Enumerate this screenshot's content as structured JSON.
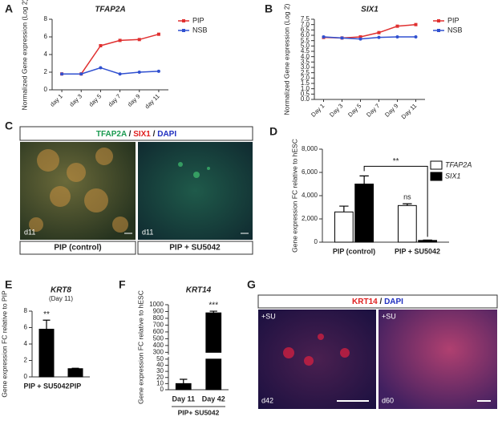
{
  "chart_data": [
    {
      "type": "line",
      "title": "TFAP2A",
      "ylabel": "Normalized Gene expression (Log 2)",
      "categories": [
        "day 1",
        "day 3",
        "day 5",
        "day 7",
        "day 9",
        "day 11"
      ],
      "series": [
        {
          "name": "PIP",
          "color": "#e03030",
          "values": [
            1.8,
            1.8,
            5.0,
            5.6,
            5.7,
            6.3
          ]
        },
        {
          "name": "NSB",
          "color": "#3050d0",
          "values": [
            1.8,
            1.8,
            2.5,
            1.8,
            2.0,
            2.1
          ]
        }
      ],
      "ylim": [
        0,
        8
      ],
      "yticks": [
        0,
        2,
        4,
        6,
        8
      ]
    },
    {
      "type": "line",
      "title": "SIX1",
      "ylabel": "Normalized Gene expression (Log 2)",
      "categories": [
        "Day 1",
        "Day 3",
        "Day 5",
        "Day 7",
        "Day 9",
        "Day 11"
      ],
      "series": [
        {
          "name": "PIP",
          "color": "#e03030",
          "values": [
            5.8,
            5.75,
            5.85,
            6.25,
            6.85,
            7.0
          ]
        },
        {
          "name": "NSB",
          "color": "#3050d0",
          "values": [
            5.85,
            5.75,
            5.65,
            5.8,
            5.85,
            5.85
          ]
        }
      ],
      "ylim": [
        0,
        7.5
      ],
      "yticks": [
        {
          "value": 0,
          "label": "0.0"
        },
        0.5,
        {
          "value": 1,
          "label": "1.0"
        },
        1.5,
        {
          "value": 2,
          "label": "2.0"
        },
        2.5,
        {
          "value": 3,
          "label": "3.0"
        },
        3.5,
        {
          "value": 4,
          "label": "4.0"
        },
        4.5,
        {
          "value": 5,
          "label": "5.0"
        },
        5.5,
        {
          "value": 6,
          "label": "6.0"
        },
        6.5,
        {
          "value": 7,
          "label": "7.0"
        },
        7.5
      ]
    },
    {
      "type": "bar",
      "ylabel": "Gene expression FC relative to hESC",
      "categories": [
        "PIP (control)",
        "PIP + SU5042"
      ],
      "series": [
        {
          "name": "TFAP2A",
          "color": "#ffffff",
          "values": [
            2600,
            3150
          ],
          "errors": [
            500,
            150
          ]
        },
        {
          "name": "SIX1",
          "color": "#000000",
          "values": [
            5000,
            150
          ],
          "errors": [
            700,
            30
          ]
        }
      ],
      "ylim": [
        0,
        8000
      ],
      "yticks": [
        0,
        {
          "value": 2000,
          "label": "2,000"
        },
        {
          "value": 4000,
          "label": "4,000"
        },
        {
          "value": 6000,
          "label": "6,000"
        },
        {
          "value": 8000,
          "label": "8,000"
        }
      ],
      "annotations": [
        "**",
        "ns"
      ]
    },
    {
      "type": "bar",
      "title": "KRT8",
      "subtitle": "(Day 11)",
      "ylabel": "Gene expression FC relative to PIP",
      "categories": [
        "PIP + SU5042",
        "PIP"
      ],
      "series": [
        {
          "color": "#000000",
          "values": [
            5.8,
            1.0
          ],
          "errors": [
            1.1,
            0.05
          ]
        }
      ],
      "ylim": [
        0,
        8
      ],
      "yticks": [
        0,
        2,
        4,
        6,
        8
      ],
      "annotations": [
        "**"
      ]
    },
    {
      "type": "bar",
      "title": "KRT14",
      "ylabel": "Gene expression FC relative to hESC",
      "xlabel": "PIP+ SU5042",
      "categories": [
        "Day 11",
        "Day 42"
      ],
      "series": [
        {
          "color": "#000000",
          "values": [
            10,
            880
          ],
          "errors": [
            7,
            25
          ]
        }
      ],
      "ylim": [
        0,
        1000
      ],
      "ybreak": [
        50,
        300
      ],
      "yticks": [
        0,
        10,
        20,
        30,
        40,
        50,
        300,
        400,
        500,
        600,
        700,
        800,
        900,
        1000
      ],
      "annotations": [
        "***"
      ]
    }
  ],
  "panel_labels": [
    "A",
    "B",
    "C",
    "D",
    "E",
    "F",
    "G"
  ],
  "images": {
    "c_header": [
      "TFAP2A",
      "/",
      "SIX1",
      "/",
      "DAPI"
    ],
    "c_days": [
      "d11",
      "d11"
    ],
    "c_captions": [
      "PIP (control)",
      "PIP + SU5042"
    ],
    "g_header": [
      "KRT14",
      "/",
      "DAPI"
    ],
    "g_tags": [
      "+SU",
      "+SU"
    ],
    "g_days": [
      "d42",
      "d60"
    ]
  }
}
